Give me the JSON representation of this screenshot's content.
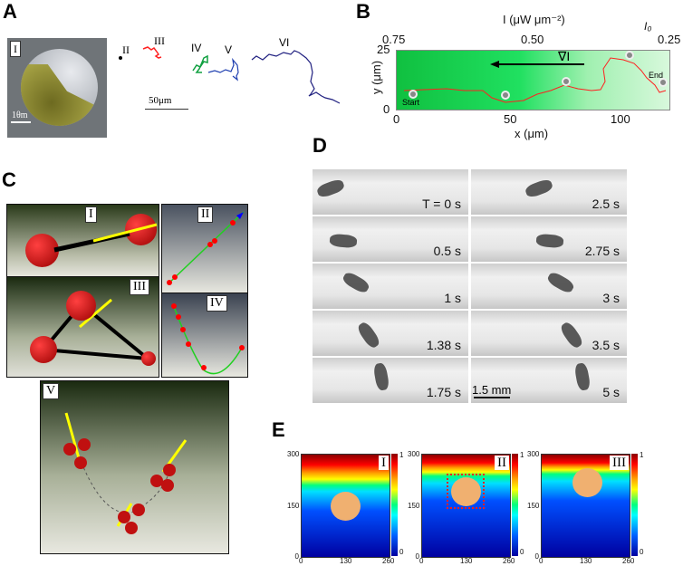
{
  "panels": {
    "A": {
      "label": "A",
      "sub_labels": [
        "I",
        "II",
        "III",
        "IV",
        "V",
        "VI"
      ],
      "scale_bar_sem": "1θm",
      "scale_bar": "50μm",
      "trajectory_colors": [
        "#000000",
        "#ff2020",
        "#10a040",
        "#2040b0",
        "#202080"
      ]
    },
    "B": {
      "label": "B",
      "top_axis_label": "I (μW μm⁻²)",
      "top_ticks": [
        "0.75",
        "0.50",
        "0.25"
      ],
      "io_label": "I₀",
      "gradient_label": "∇I",
      "start_label": "Start",
      "end_label": "End",
      "ylabel": "y (μm)",
      "yticks": [
        "25",
        "0"
      ],
      "xlabel": "x (μm)",
      "xticks": [
        "0",
        "50",
        "100"
      ]
    },
    "C": {
      "label": "C",
      "sub_labels": [
        "I",
        "II",
        "III",
        "IV",
        "V"
      ]
    },
    "D": {
      "label": "D",
      "left_times": [
        "T = 0 s",
        "0.5 s",
        "1 s",
        "1.38 s",
        "1.75 s"
      ],
      "right_times": [
        "2.5 s",
        "2.75 s",
        "3 s",
        "3.5 s",
        "5 s"
      ],
      "scale_bar": "1.5 mm"
    },
    "E": {
      "label": "E",
      "sub_labels": [
        "I",
        "II",
        "III"
      ],
      "yticks": [
        "300",
        "150",
        "0"
      ],
      "xticks": [
        "0",
        "130",
        "260"
      ],
      "colorbar_ticks": [
        "1",
        "0"
      ]
    }
  }
}
